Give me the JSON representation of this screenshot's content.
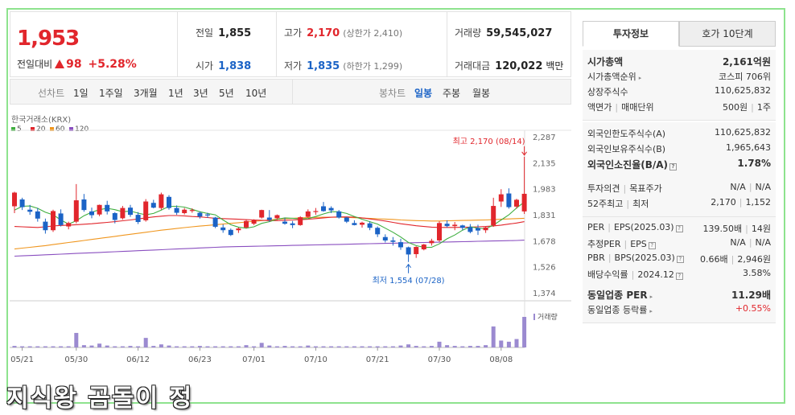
{
  "summary": {
    "price": "1,953",
    "change_label": "전일대비",
    "change_value": "98",
    "change_pct": "+5.28%",
    "prev_close_label": "전일",
    "prev_close": "1,855",
    "open_label": "시가",
    "open": "1,838",
    "high_label": "고가",
    "high": "2,170",
    "upper_limit": "(상한가 2,410)",
    "low_label": "저가",
    "low": "1,835",
    "lower_limit": "(하한가 1,299)",
    "volume_label": "거래량",
    "volume": "59,545,027",
    "amount_label": "거래대금",
    "amount": "120,022",
    "amount_unit": "백만"
  },
  "period_tabs": {
    "label": "선차트",
    "items": [
      "1일",
      "1주일",
      "3개월",
      "1년",
      "3년",
      "5년",
      "10년"
    ]
  },
  "candle_tabs": {
    "label": "봉차트",
    "items": [
      "일봉",
      "주봉",
      "월봉"
    ],
    "active": "일봉"
  },
  "chart_data": {
    "type": "candlestick",
    "source_label": "한국거래소(KRX)",
    "ma_legend": [
      {
        "name": "5",
        "color": "#3fae3f"
      },
      {
        "name": "20",
        "color": "#e1262c"
      },
      {
        "name": "60",
        "color": "#f0961e"
      },
      {
        "name": "120",
        "color": "#8a4fc0"
      }
    ],
    "ylim": [
      1374,
      2287
    ],
    "y_ticks": [
      "2,287",
      "2,135",
      "1,983",
      "1,831",
      "1,678",
      "1,526",
      "1,374"
    ],
    "y_tick_values": [
      2287,
      2135,
      1983,
      1831,
      1678,
      1526,
      1374
    ],
    "x_ticks": [
      "05/21",
      "05/30",
      "06/12",
      "06/23",
      "07/01",
      "07/10",
      "07/21",
      "07/30",
      "08/08"
    ],
    "x_tick_index": [
      1,
      8,
      16,
      24,
      31,
      39,
      47,
      55,
      63
    ],
    "ohlc": [
      [
        1880,
        1965,
        1840,
        1960
      ],
      [
        1920,
        1930,
        1858,
        1875
      ],
      [
        1860,
        1888,
        1830,
        1848
      ],
      [
        1850,
        1870,
        1790,
        1808
      ],
      [
        1790,
        1808,
        1720,
        1740
      ],
      [
        1740,
        1860,
        1730,
        1852
      ],
      [
        1838,
        1862,
        1762,
        1770
      ],
      [
        1762,
        1790,
        1745,
        1782
      ],
      [
        1790,
        2010,
        1780,
        1915
      ],
      [
        1920,
        1952,
        1848,
        1858
      ],
      [
        1850,
        1872,
        1810,
        1828
      ],
      [
        1832,
        1890,
        1822,
        1888
      ],
      [
        1888,
        1912,
        1832,
        1850
      ],
      [
        1840,
        1846,
        1780,
        1800
      ],
      [
        1810,
        1882,
        1802,
        1870
      ],
      [
        1872,
        1888,
        1818,
        1830
      ],
      [
        1830,
        1846,
        1776,
        1788
      ],
      [
        1798,
        1922,
        1790,
        1908
      ],
      [
        1900,
        1918,
        1868,
        1872
      ],
      [
        1870,
        1960,
        1860,
        1950
      ],
      [
        1935,
        1945,
        1860,
        1870
      ],
      [
        1870,
        1885,
        1830,
        1842
      ],
      [
        1840,
        1870,
        1832,
        1860
      ],
      [
        1858,
        1868,
        1842,
        1858
      ],
      [
        1842,
        1850,
        1808,
        1820
      ],
      [
        1832,
        1842,
        1812,
        1828
      ],
      [
        1814,
        1818,
        1752,
        1760
      ],
      [
        1756,
        1774,
        1725,
        1740
      ],
      [
        1742,
        1750,
        1706,
        1712
      ],
      [
        1740,
        1756,
        1724,
        1750
      ],
      [
        1756,
        1800,
        1750,
        1794
      ],
      [
        1778,
        1804,
        1770,
        1798
      ],
      [
        1814,
        1860,
        1808,
        1858
      ],
      [
        1814,
        1858,
        1790,
        1800
      ],
      [
        1810,
        1832,
        1800,
        1828
      ],
      [
        1790,
        1812,
        1772,
        1778
      ],
      [
        1780,
        1794,
        1752,
        1770
      ],
      [
        1770,
        1822,
        1766,
        1816
      ],
      [
        1818,
        1862,
        1812,
        1850
      ],
      [
        1850,
        1870,
        1830,
        1852
      ],
      [
        1880,
        1905,
        1848,
        1852
      ],
      [
        1870,
        1880,
        1840,
        1856
      ],
      [
        1850,
        1858,
        1808,
        1814
      ],
      [
        1814,
        1818,
        1782,
        1790
      ],
      [
        1782,
        1798,
        1768,
        1770
      ],
      [
        1772,
        1790,
        1755,
        1784
      ],
      [
        1780,
        1792,
        1740,
        1754
      ],
      [
        1754,
        1762,
        1700,
        1716
      ],
      [
        1700,
        1716,
        1668,
        1680
      ],
      [
        1680,
        1700,
        1650,
        1672
      ],
      [
        1670,
        1690,
        1625,
        1640
      ],
      [
        1640,
        1644,
        1554,
        1598
      ],
      [
        1600,
        1646,
        1578,
        1642
      ],
      [
        1628,
        1660,
        1622,
        1656
      ],
      [
        1664,
        1690,
        1650,
        1678
      ],
      [
        1680,
        1792,
        1672,
        1782
      ],
      [
        1778,
        1798,
        1756,
        1764
      ],
      [
        1764,
        1788,
        1740,
        1772
      ],
      [
        1768,
        1772,
        1740,
        1754
      ],
      [
        1758,
        1776,
        1722,
        1730
      ],
      [
        1752,
        1772,
        1712,
        1738
      ],
      [
        1740,
        1760,
        1724,
        1756
      ],
      [
        1768,
        1930,
        1760,
        1882
      ],
      [
        1908,
        1980,
        1876,
        1950
      ],
      [
        1955,
        1985,
        1866,
        1875
      ],
      [
        1878,
        1924,
        1866,
        1918
      ],
      [
        1850,
        2170,
        1835,
        1953
      ]
    ],
    "volume": [
      4,
      3,
      3,
      3,
      3,
      3,
      3,
      3,
      38,
      6,
      5,
      10,
      5,
      3,
      3,
      4,
      3,
      25,
      4,
      8,
      5,
      3,
      3,
      3,
      4,
      3,
      3,
      3,
      3,
      3,
      6,
      3,
      12,
      5,
      3,
      4,
      3,
      3,
      5,
      3,
      3,
      3,
      3,
      3,
      3,
      3,
      3,
      3,
      3,
      3,
      5,
      8,
      4,
      3,
      4,
      15,
      6,
      4,
      3,
      4,
      4,
      6,
      55,
      18,
      15,
      22,
      80
    ],
    "ma5": [
      1858,
      1880,
      1882,
      1868,
      1845,
      1830,
      1800,
      1776,
      1795,
      1825,
      1845,
      1860,
      1868,
      1860,
      1848,
      1852,
      1840,
      1830,
      1838,
      1858,
      1880,
      1880,
      1875,
      1862,
      1848,
      1838,
      1830,
      1800,
      1772,
      1758,
      1752,
      1760,
      1780,
      1790,
      1804,
      1812,
      1810,
      1806,
      1808,
      1820,
      1835,
      1848,
      1848,
      1838,
      1820,
      1804,
      1790,
      1776,
      1752,
      1728,
      1700,
      1668,
      1650,
      1640,
      1640,
      1660,
      1690,
      1712,
      1740,
      1760,
      1752,
      1748,
      1770,
      1800,
      1830,
      1870,
      1905
    ],
    "ma20": [
      1762,
      1760,
      1758,
      1756,
      1760,
      1765,
      1768,
      1770,
      1772,
      1775,
      1778,
      1782,
      1786,
      1790,
      1795,
      1800,
      1806,
      1812,
      1818,
      1822,
      1826,
      1826,
      1824,
      1820,
      1818,
      1814,
      1810,
      1808,
      1806,
      1804,
      1802,
      1800,
      1798,
      1796,
      1796,
      1798,
      1800,
      1802,
      1804,
      1808,
      1812,
      1816,
      1818,
      1818,
      1816,
      1812,
      1806,
      1800,
      1794,
      1786,
      1778,
      1772,
      1766,
      1762,
      1758,
      1756,
      1756,
      1756,
      1757,
      1758,
      1760,
      1762,
      1765,
      1770,
      1776,
      1782,
      1790
    ],
    "ma60": [
      1630,
      1635,
      1640,
      1645,
      1650,
      1656,
      1662,
      1668,
      1674,
      1680,
      1686,
      1692,
      1698,
      1704,
      1710,
      1716,
      1722,
      1728,
      1734,
      1740,
      1745,
      1750,
      1755,
      1760,
      1764,
      1768,
      1772,
      1776,
      1780,
      1784,
      1788,
      1792,
      1796,
      1800,
      1804,
      1807,
      1810,
      1812,
      1814,
      1815,
      1816,
      1816,
      1816,
      1815,
      1813,
      1811,
      1809,
      1807,
      1805,
      1803,
      1800,
      1798,
      1796,
      1795,
      1794,
      1794,
      1795,
      1796,
      1797,
      1798,
      1799,
      1800,
      1802,
      1804,
      1806,
      1808,
      1810
    ],
    "ma120": [
      1588,
      1590,
      1592,
      1594,
      1596,
      1598,
      1600,
      1602,
      1604,
      1606,
      1608,
      1610,
      1612,
      1614,
      1616,
      1618,
      1620,
      1622,
      1624,
      1626,
      1628,
      1630,
      1632,
      1634,
      1636,
      1638,
      1640,
      1642,
      1643,
      1644,
      1645,
      1646,
      1647,
      1648,
      1649,
      1650,
      1651,
      1652,
      1653,
      1654,
      1655,
      1656,
      1657,
      1658,
      1659,
      1660,
      1661,
      1662,
      1663,
      1664,
      1665,
      1666,
      1667,
      1668,
      1669,
      1670,
      1671,
      1672,
      1673,
      1674,
      1675,
      1676,
      1677,
      1678,
      1679,
      1680,
      1682
    ],
    "high_annotation": "최고 2,170 (08/14)",
    "low_annotation": "최저 1,554 (07/28)",
    "high_value": 2170,
    "high_index": 66,
    "low_value": 1554,
    "low_index": 51,
    "volume_label": "거래량"
  },
  "right_tabs": [
    "투자정보",
    "호가 10단계"
  ],
  "invest": {
    "g1": [
      {
        "l": "시가총액",
        "r": "2,161억원",
        "bold": true
      },
      {
        "l": "시가총액순위",
        "r": "코스피 706위",
        "arrow": true
      },
      {
        "l": "상장주식수",
        "r": "110,625,832"
      },
      {
        "l1": "액면가",
        "l2": "매매단위",
        "r1": "500원",
        "r2": "1주"
      }
    ],
    "g2": [
      {
        "l": "외국인한도주식수(A)",
        "r": "110,625,832"
      },
      {
        "l": "외국인보유주식수(B)",
        "r": "1,965,643"
      },
      {
        "l": "외국인소진율(B/A)",
        "r": "1.78%",
        "bold": true,
        "q": true
      }
    ],
    "g3": [
      {
        "l1": "투자의견",
        "l2": "목표주가",
        "r1": "N/A",
        "r2": "N/A"
      },
      {
        "l1": "52주최고",
        "l2": "최저",
        "r1": "2,170",
        "r2": "1,152"
      }
    ],
    "g4": [
      {
        "l1": "PER",
        "l2": "EPS",
        "l2sub": "(2025.03)",
        "r1": "139.50배",
        "r2": "14원",
        "q": true
      },
      {
        "l1": "추정PER",
        "l2": "EPS",
        "r1": "N/A",
        "r2": "N/A",
        "q": true
      },
      {
        "l1": "PBR",
        "l2": "BPS",
        "l2sub": "(2025.03)",
        "r1": "0.66배",
        "r2": "2,946원",
        "q": true
      },
      {
        "l1": "배당수익률",
        "l2": "2024.12",
        "r1": "3.58%",
        "q": true
      }
    ],
    "g5": [
      {
        "l": "동일업종 PER",
        "r": "11.29배",
        "bold": true,
        "arrow": true
      },
      {
        "l": "동일업종 등락률",
        "r": "+0.55%",
        "red": true,
        "arrow": true
      }
    ]
  },
  "watermark": "지식왕 곰돌이 정"
}
